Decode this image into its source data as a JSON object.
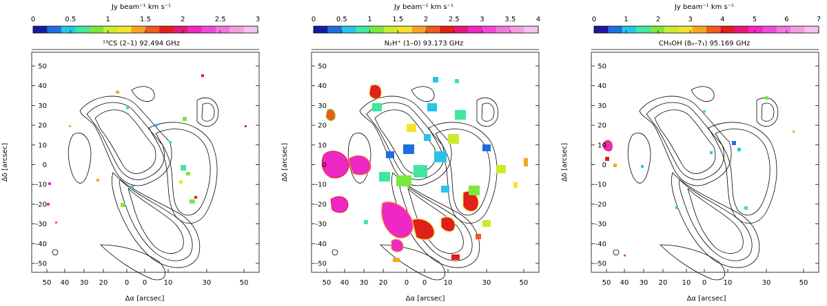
{
  "panels": [
    {
      "colorbar_label": "Jy beam⁻¹ km s⁻¹",
      "title": "¹³CS (2–1) 92.494 GHz",
      "cb_ticks": [
        "0",
        "0.5",
        "1",
        "1.5",
        "2",
        "2.5",
        "3"
      ],
      "cb_max": 3,
      "cb_colors": [
        "#1a1aa0",
        "#1e6ee0",
        "#27c4e8",
        "#3fe6a0",
        "#7ae83c",
        "#c8ec30",
        "#f5e32b",
        "#f6a623",
        "#ef5b1e",
        "#e0201c",
        "#e8187a",
        "#ee28c4",
        "#f04ad6",
        "#f276dd",
        "#f49ee4",
        "#f6c2ec"
      ],
      "y_ticks": [
        "50",
        "40",
        "30",
        "20",
        "10",
        "0",
        "-10",
        "-20",
        "-30",
        "-40",
        "-50"
      ],
      "x_ticks": [
        "50",
        "40",
        "30",
        "20",
        "0",
        "0",
        "10",
        "30",
        "50"
      ],
      "ylabel": "Δδ [arcsec]",
      "xlabel": "Δα [arcsec]"
    },
    {
      "colorbar_label": "Jy beam⁻¹ km s⁻¹",
      "title": "N₂H⁺ (1–0) 93.173 GHz",
      "cb_ticks": [
        "0",
        "0.5",
        "1",
        "1.5",
        "2",
        "2.5",
        "3",
        "3.5",
        "4"
      ],
      "cb_max": 4,
      "cb_colors": [
        "#1a1aa0",
        "#1e6ee0",
        "#27c4e8",
        "#3fe6a0",
        "#7ae83c",
        "#c8ec30",
        "#f5e32b",
        "#f6a623",
        "#ef5b1e",
        "#e0201c",
        "#e8187a",
        "#ee28c4",
        "#f04ad6",
        "#f276dd",
        "#f49ee4",
        "#f6c2ec"
      ],
      "y_ticks": [
        "50",
        "40",
        "30",
        "20",
        "10",
        "0",
        "-10",
        "-20",
        "-30",
        "-40",
        "-50"
      ],
      "x_ticks": [
        "50",
        "40",
        "30",
        "20",
        "0",
        "0",
        "10",
        "30",
        "50"
      ],
      "ylabel": "Δδ [arcsec]",
      "xlabel": "Δα [arcsec]"
    },
    {
      "colorbar_label": "Jy beam⁻¹ km s⁻¹",
      "title": "CH₃OH (8₀–7₁) 95.169 GHz",
      "cb_ticks": [
        "0",
        "1",
        "2",
        "3",
        "4",
        "5",
        "6",
        "7"
      ],
      "cb_max": 7,
      "cb_colors": [
        "#1a1aa0",
        "#1e6ee0",
        "#27c4e8",
        "#3fe6a0",
        "#7ae83c",
        "#c8ec30",
        "#f5e32b",
        "#f6a623",
        "#ef5b1e",
        "#e0201c",
        "#e8187a",
        "#ee28c4",
        "#f04ad6",
        "#f276dd",
        "#f49ee4",
        "#f6c2ec"
      ],
      "y_ticks": [
        "50",
        "40",
        "30",
        "20",
        "10",
        "0",
        "-10",
        "-20",
        "-30",
        "-40",
        "-50"
      ],
      "x_ticks": [
        "50",
        "40",
        "30",
        "20",
        "10",
        "0",
        "10",
        "30",
        "50"
      ],
      "ylabel": "Δδ [arcsec]",
      "xlabel": "Δα [arcsec]"
    }
  ]
}
